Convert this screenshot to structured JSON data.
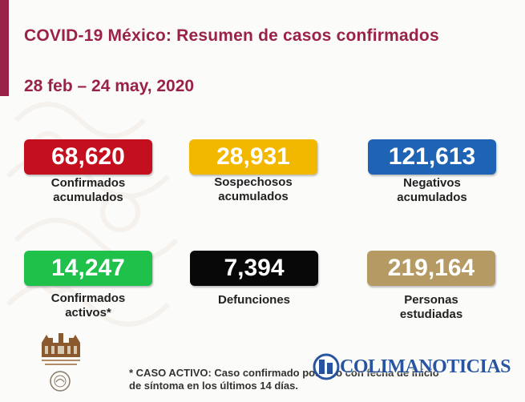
{
  "header": {
    "title": "COVID-19 México: Resumen de casos confirmados",
    "date_range": "28 feb – 24 may, 2020"
  },
  "stats": [
    {
      "value": "68,620",
      "label_line1": "Confirmados",
      "label_line2": "acumulados",
      "color": "#c4101e"
    },
    {
      "value": "28,931",
      "label_line1": "Sospechosos",
      "label_line2": "acumulados",
      "color": "#f2b800"
    },
    {
      "value": "121,613",
      "label_line1": "Negativos",
      "label_line2": "acumulados",
      "color": "#1e63b4"
    },
    {
      "value": "14,247",
      "label_line1": "Confirmados",
      "label_line2": "activos*",
      "color": "#1fc14b"
    },
    {
      "value": "7,394",
      "label_line1": "Defunciones",
      "label_line2": "",
      "color": "#080808"
    },
    {
      "value": "219,164",
      "label_line1": "Personas",
      "label_line2": "estudiadas",
      "color": "#b59a63"
    }
  ],
  "footnote": {
    "line1": "* CASO ACTIVO: Caso confirmado positivo con fecha de inicio",
    "line2": "de síntoma en los últimos 14 días."
  },
  "watermark": {
    "text": "COLIMANOTICIAS",
    "icon": "colimanoticias-logo-icon"
  },
  "brand_color": "#9b2247"
}
